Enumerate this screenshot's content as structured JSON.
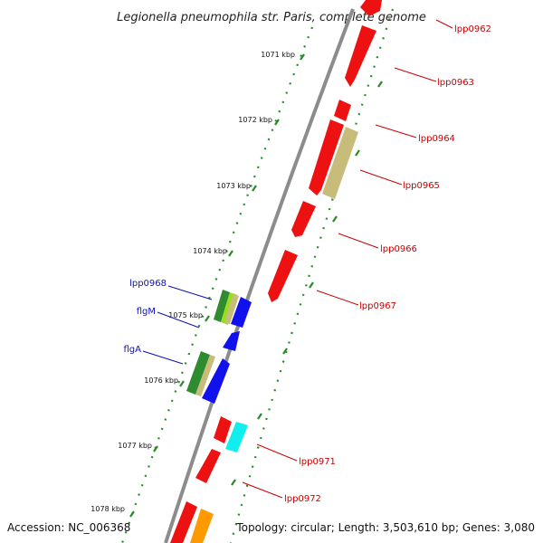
{
  "title": "Legionella pneumophila str. Paris, complete genome",
  "footer": {
    "accession": "Accession: NC_006368",
    "info": "Topology: circular; Length: 3,503,610 bp; Genes: 3,080"
  },
  "colors": {
    "backbone": "#8c8c8c",
    "tick": "#2a8a2a",
    "dots": "#2a8a2a",
    "red_label": "#cc0000",
    "blue_label": "#1010b0"
  },
  "kbp_labels": [
    "1071 kbp",
    "1072 kbp",
    "1073 kbp",
    "1074 kbp",
    "1075 kbp",
    "1076 kbp",
    "1077 kbp",
    "1078 kbp"
  ],
  "gene_labels": [
    {
      "text": "lpp0962",
      "color": "red"
    },
    {
      "text": "lpp0963",
      "color": "red"
    },
    {
      "text": "lpp0964",
      "color": "red"
    },
    {
      "text": "lpp0965",
      "color": "red"
    },
    {
      "text": "lpp0966",
      "color": "red"
    },
    {
      "text": "lpp0967",
      "color": "red"
    },
    {
      "text": "lpp0968",
      "color": "blue"
    },
    {
      "text": "flgM",
      "color": "blue"
    },
    {
      "text": "flgA",
      "color": "blue"
    },
    {
      "text": "lpp0971",
      "color": "red"
    },
    {
      "text": "lpp0972",
      "color": "red"
    }
  ],
  "gene_feature_colors": {
    "red": "#ee1111",
    "tan": "#c8bc7a",
    "blue": "#1111ee",
    "green": "#2e8b2e",
    "lime": "#99dd22",
    "cyan": "#11eeee",
    "orange": "#ff9900"
  }
}
